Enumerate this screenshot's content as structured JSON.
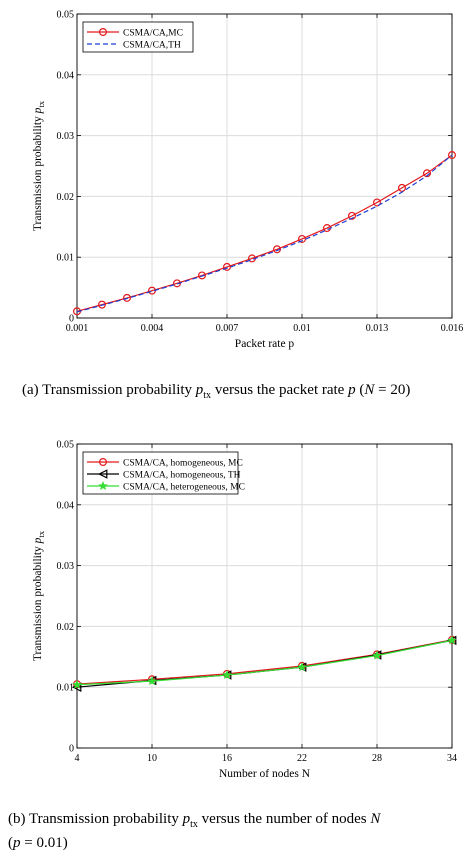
{
  "captions": {
    "a": "(a) Transmission probability p_tx versus the packet rate p (N = 20)",
    "b_line1": "(b) Transmission probability p_tx versus the number of nodes N",
    "b_line2": "(p = 0.01)"
  },
  "chart_data": [
    {
      "type": "line",
      "xlabel": "Packet rate p",
      "ylabel": "Transmission probability p_tx",
      "xlim": [
        0.001,
        0.016
      ],
      "ylim": [
        0,
        0.05
      ],
      "xticks": [
        0.001,
        0.004,
        0.007,
        0.01,
        0.013,
        0.016
      ],
      "xtick_labels": [
        "0.001",
        "0.004",
        "0.007",
        "0.01",
        "0.013",
        "0.016"
      ],
      "yticks": [
        0,
        0.01,
        0.02,
        0.03,
        0.04,
        0.05
      ],
      "ytick_labels": [
        "0",
        "0.01",
        "0.02",
        "0.03",
        "0.04",
        "0.05"
      ],
      "grid": true,
      "legend_position": "top-left",
      "series": [
        {
          "name": "CSMA/CA,MC",
          "color": "#e31a1c",
          "style": "solid",
          "marker": "circle",
          "marker_color": "#e31a1c",
          "x": [
            0.001,
            0.002,
            0.003,
            0.004,
            0.005,
            0.006,
            0.007,
            0.008,
            0.009,
            0.01,
            0.011,
            0.012,
            0.013,
            0.014,
            0.015,
            0.016
          ],
          "y": [
            0.0011,
            0.0022,
            0.0033,
            0.0045,
            0.0057,
            0.007,
            0.0084,
            0.0098,
            0.0113,
            0.013,
            0.0148,
            0.0168,
            0.019,
            0.0214,
            0.0238,
            0.0268
          ]
        },
        {
          "name": "CSMA/CA,TH",
          "color": "#1f3fd6",
          "style": "dashed",
          "marker": "none",
          "x": [
            0.001,
            0.002,
            0.003,
            0.004,
            0.005,
            0.006,
            0.007,
            0.008,
            0.009,
            0.01,
            0.011,
            0.012,
            0.013,
            0.014,
            0.015,
            0.016
          ],
          "y": [
            0.001,
            0.0021,
            0.0032,
            0.0044,
            0.0056,
            0.0069,
            0.0082,
            0.0096,
            0.0111,
            0.0127,
            0.0145,
            0.0164,
            0.0184,
            0.0207,
            0.0234,
            0.0268
          ]
        }
      ]
    },
    {
      "type": "line",
      "xlabel": "Number of nodes N",
      "ylabel": "Transmission probability p_tx",
      "xlim": [
        4,
        34
      ],
      "ylim": [
        0,
        0.05
      ],
      "xticks": [
        4,
        10,
        16,
        22,
        28,
        34
      ],
      "xtick_labels": [
        "4",
        "10",
        "16",
        "22",
        "28",
        "34"
      ],
      "yticks": [
        0,
        0.01,
        0.02,
        0.03,
        0.04,
        0.05
      ],
      "ytick_labels": [
        "0",
        "0.01",
        "0.02",
        "0.03",
        "0.04",
        "0.05"
      ],
      "grid": true,
      "legend_position": "top-left",
      "series": [
        {
          "name": "CSMA/CA, homogeneous, MC",
          "color": "#e31a1c",
          "style": "solid",
          "marker": "circle",
          "marker_color": "#e31a1c",
          "x": [
            4,
            10,
            16,
            22,
            28,
            34
          ],
          "y": [
            0.0105,
            0.0113,
            0.0122,
            0.0135,
            0.0154,
            0.0178
          ]
        },
        {
          "name": "CSMA/CA, homogeneous, TH",
          "color": "#000000",
          "style": "solid",
          "marker": "triangle-left",
          "marker_color": "#000000",
          "x": [
            4,
            10,
            16,
            22,
            28,
            34
          ],
          "y": [
            0.01,
            0.0111,
            0.012,
            0.0133,
            0.0153,
            0.0177
          ]
        },
        {
          "name": "CSMA/CA, heterogeneous, MC",
          "color": "#33dd33",
          "style": "solid",
          "marker": "star",
          "marker_color": "#33dd33",
          "x": [
            4,
            10,
            16,
            22,
            28,
            34
          ],
          "y": [
            0.0104,
            0.011,
            0.012,
            0.0133,
            0.0152,
            0.0177
          ]
        }
      ]
    }
  ]
}
